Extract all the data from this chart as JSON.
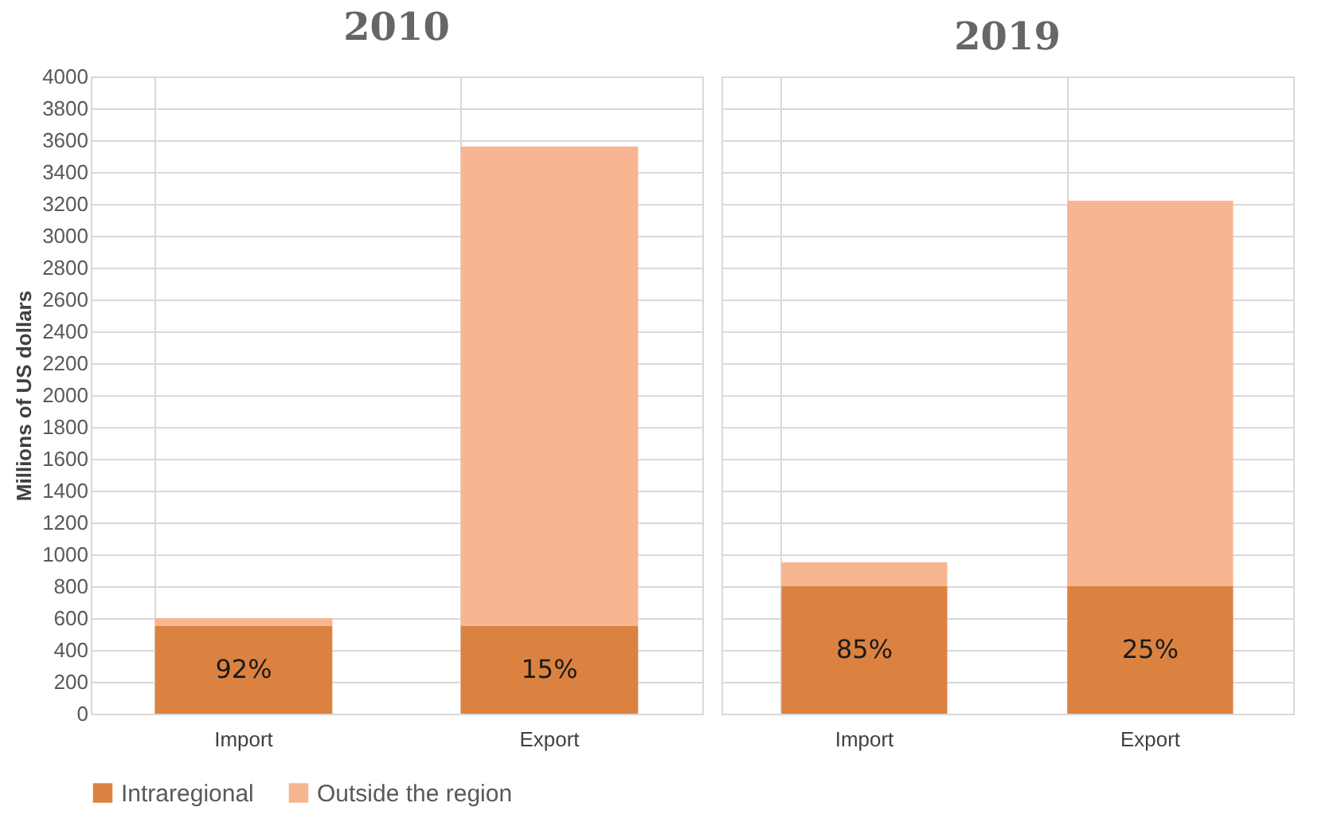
{
  "chart_data": [
    {
      "type": "bar",
      "title": "2010",
      "ylabel": "Millions of US dollars",
      "categories": [
        "Import",
        "Export"
      ],
      "stacked": true,
      "ylim": [
        0,
        4000
      ],
      "yticks": [
        0,
        200,
        400,
        600,
        800,
        1000,
        1200,
        1400,
        1600,
        1800,
        2000,
        2200,
        2400,
        2600,
        2800,
        3000,
        3200,
        3400,
        3600,
        3800,
        4000
      ],
      "grid": true,
      "legend": "bottom",
      "series": [
        {
          "name": "Intraregional",
          "color": "#dc8240",
          "values": [
            550,
            550
          ]
        },
        {
          "name": "Outside the region",
          "color": "#f8b592",
          "values": [
            50,
            3010
          ]
        }
      ],
      "annotations": [
        "92%",
        "15%"
      ]
    },
    {
      "type": "bar",
      "title": "2019",
      "categories": [
        "Import",
        "Export"
      ],
      "stacked": true,
      "ylim": [
        0,
        4000
      ],
      "yticks": [
        0,
        200,
        400,
        600,
        800,
        1000,
        1200,
        1400,
        1600,
        1800,
        2000,
        2200,
        2400,
        2600,
        2800,
        3000,
        3200,
        3400,
        3600,
        3800,
        4000
      ],
      "grid": true,
      "legend": "bottom",
      "tick_labels": "x",
      "series": [
        {
          "name": "Intraregional",
          "color": "#dc8240",
          "values": [
            800,
            800
          ]
        },
        {
          "name": "Outside the region",
          "color": "#f8b592",
          "values": [
            150,
            2420
          ]
        }
      ],
      "annotations": [
        "85%",
        "25%"
      ]
    }
  ]
}
